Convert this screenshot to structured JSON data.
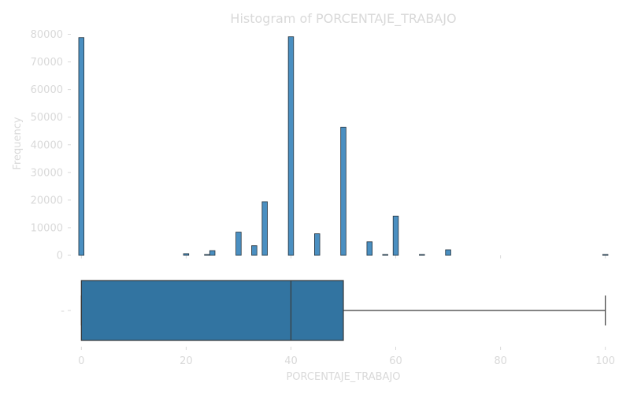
{
  "chart_data": [
    {
      "type": "histogram",
      "title": "Histogram of PORCENTAJE_TRABAJO",
      "ylabel": "Frequency",
      "xlim": [
        -2,
        102
      ],
      "ylim": [
        0,
        81000
      ],
      "y_ticks": [
        "0",
        "10000",
        "20000",
        "30000",
        "40000",
        "50000",
        "60000",
        "70000",
        "80000"
      ],
      "x_ticks": [
        "0",
        "20",
        "40",
        "60",
        "80",
        "100"
      ],
      "bin_width": 1,
      "bins": [
        {
          "x": 0,
          "value": 78800
        },
        {
          "x": 20,
          "value": 600
        },
        {
          "x": 24,
          "value": 300
        },
        {
          "x": 25,
          "value": 1700
        },
        {
          "x": 30,
          "value": 8400
        },
        {
          "x": 33,
          "value": 3500
        },
        {
          "x": 35,
          "value": 19400
        },
        {
          "x": 40,
          "value": 79100
        },
        {
          "x": 45,
          "value": 7800
        },
        {
          "x": 50,
          "value": 46400
        },
        {
          "x": 55,
          "value": 4900
        },
        {
          "x": 58,
          "value": 300
        },
        {
          "x": 60,
          "value": 14200
        },
        {
          "x": 65,
          "value": 300
        },
        {
          "x": 70,
          "value": 2000
        },
        {
          "x": 100,
          "value": 300
        }
      ]
    },
    {
      "type": "boxplot",
      "xlabel": "PORCENTAJE_TRABAJO",
      "y_tick": "-",
      "whisker_low": 0,
      "q1": 0,
      "median": 40,
      "q3": 50,
      "whisker_high": 100
    }
  ]
}
